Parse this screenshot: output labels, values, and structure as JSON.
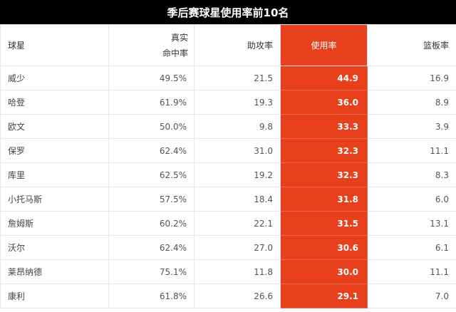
{
  "title": "季后赛球星使用率前10名",
  "headers": {
    "name": "球星",
    "ts_line1": "真实",
    "ts_line2": "命中率",
    "ast": "助攻率",
    "usg": "使用率",
    "reb": "篮板率"
  },
  "rows": [
    {
      "name": "威少",
      "ts": "49.5%",
      "ast": "21.5",
      "usg": "44.9",
      "reb": "16.9"
    },
    {
      "name": "哈登",
      "ts": "61.9%",
      "ast": "19.3",
      "usg": "36.0",
      "reb": "8.9"
    },
    {
      "name": "欧文",
      "ts": "50.0%",
      "ast": "9.8",
      "usg": "33.3",
      "reb": "3.9"
    },
    {
      "name": "保罗",
      "ts": "62.4%",
      "ast": "31.0",
      "usg": "32.3",
      "reb": "11.1"
    },
    {
      "name": "库里",
      "ts": "62.5%",
      "ast": "19.2",
      "usg": "32.3",
      "reb": "8.3"
    },
    {
      "name": "小托马斯",
      "ts": "57.5%",
      "ast": "18.4",
      "usg": "31.8",
      "reb": "6.0"
    },
    {
      "name": "詹姆斯",
      "ts": "60.2%",
      "ast": "22.1",
      "usg": "31.5",
      "reb": "13.1"
    },
    {
      "name": "沃尔",
      "ts": "62.4%",
      "ast": "27.0",
      "usg": "30.6",
      "reb": "6.1"
    },
    {
      "name": "莱昂纳德",
      "ts": "75.1%",
      "ast": "11.8",
      "usg": "30.0",
      "reb": "11.1"
    },
    {
      "name": "康利",
      "ts": "61.8%",
      "ast": "26.6",
      "usg": "29.1",
      "reb": "7.0"
    }
  ],
  "colors": {
    "title_bg": "#000000",
    "highlight": "#e8401c"
  }
}
